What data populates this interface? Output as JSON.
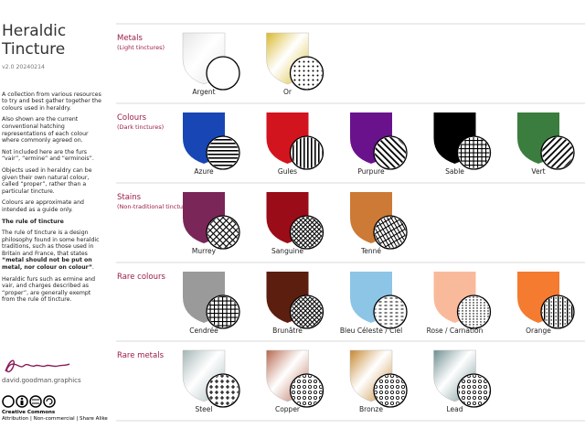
{
  "sidebar": {
    "title": "Heraldic Tincture",
    "version": "v2.0 20240214",
    "paragraphs": [
      "A collection from various resources to try and best gather together the colours used in heraldry.",
      "Also shown are the current conventional hatching representations of each colour where commonly agreed on.",
      "Not included here are the furs “vair”, “ermine” and “erminois”.",
      "Objects used in heraldry can be given their own natural colour, called “proper”, rather than a particular tincture.",
      "Colours are approximate and intended as a guide only."
    ],
    "rule_heading": "The rule of tincture",
    "rule_text": {
      "before": "The rule of tincture is a design philosophy found in some heraldic traditions, such as those used in Britain and France, that states ",
      "bold": "“metal should not be put on metal, nor colour on colour”",
      "after": "."
    },
    "furs_note": "Heraldic furs such as ermine and vair, and charges described as “proper”, are generally exempt from the rule of tincture.",
    "website": "david.goodman.graphics",
    "license_title": "Creative Commons",
    "license_terms": "Attribution | Non-commercial | Share Alike"
  },
  "sections": [
    {
      "name": "Metals",
      "subtitle": "(Light tinctures)",
      "items": [
        {
          "name": "Argent",
          "color": "#e6e6e6",
          "finish": "metallic",
          "hatching": "plain"
        },
        {
          "name": "Or",
          "color": "#d9b829",
          "finish": "metallic",
          "hatching": "dots"
        }
      ]
    },
    {
      "name": "Colours",
      "subtitle": "(Dark tinctures)",
      "items": [
        {
          "name": "Azure",
          "color": "#1846b4",
          "finish": "flat",
          "hatching": "horizontal"
        },
        {
          "name": "Gules",
          "color": "#d2141e",
          "finish": "flat",
          "hatching": "vertical"
        },
        {
          "name": "Purpure",
          "color": "#6a128c",
          "finish": "flat",
          "hatching": "diagonal-left"
        },
        {
          "name": "Sable",
          "color": "#000000",
          "finish": "flat",
          "hatching": "grid"
        },
        {
          "name": "Vert",
          "color": "#3b7d3e",
          "finish": "flat",
          "hatching": "diagonal-right"
        }
      ]
    },
    {
      "name": "Stains",
      "subtitle": "(Non-traditional tinctures)",
      "items": [
        {
          "name": "Murrey",
          "color": "#7a2658",
          "finish": "flat",
          "hatching": "diagonal-cross"
        },
        {
          "name": "Sanguine",
          "color": "#9a0c18",
          "finish": "flat",
          "hatching": "diagonal-cross-dense"
        },
        {
          "name": "Tenné",
          "color": "#cc7a35",
          "finish": "flat",
          "hatching": "diagonal-cross-wide"
        }
      ]
    },
    {
      "name": "Rare colours",
      "subtitle": null,
      "items": [
        {
          "name": "Cendrée",
          "color": "#9a9a9a",
          "finish": "flat",
          "hatching": "grid"
        },
        {
          "name": "Brunâtre",
          "color": "#5c1e0f",
          "finish": "flat",
          "hatching": "diagonal-cross-dense"
        },
        {
          "name": "Bleu Céleste / Ciel",
          "color": "#8cc5e6",
          "finish": "flat",
          "hatching": "dashes"
        },
        {
          "name": "Rose / Carnation",
          "color": "#f9ba9c",
          "finish": "flat",
          "hatching": "dotted-vertical"
        },
        {
          "name": "Orange",
          "color": "#f47b30",
          "finish": "flat",
          "hatching": "vertical-dots"
        }
      ]
    },
    {
      "name": "Rare metals",
      "subtitle": null,
      "items": [
        {
          "name": "Steel",
          "color": "#a3b4b4",
          "finish": "metallic",
          "hatching": "crosses"
        },
        {
          "name": "Copper",
          "color": "#b5654a",
          "finish": "metallic",
          "hatching": "rings"
        },
        {
          "name": "Bronze",
          "color": "#c4852c",
          "finish": "metallic",
          "hatching": "rings"
        },
        {
          "name": "Lead",
          "color": "#6c8c8e",
          "finish": "metallic",
          "hatching": "rings"
        }
      ]
    }
  ]
}
